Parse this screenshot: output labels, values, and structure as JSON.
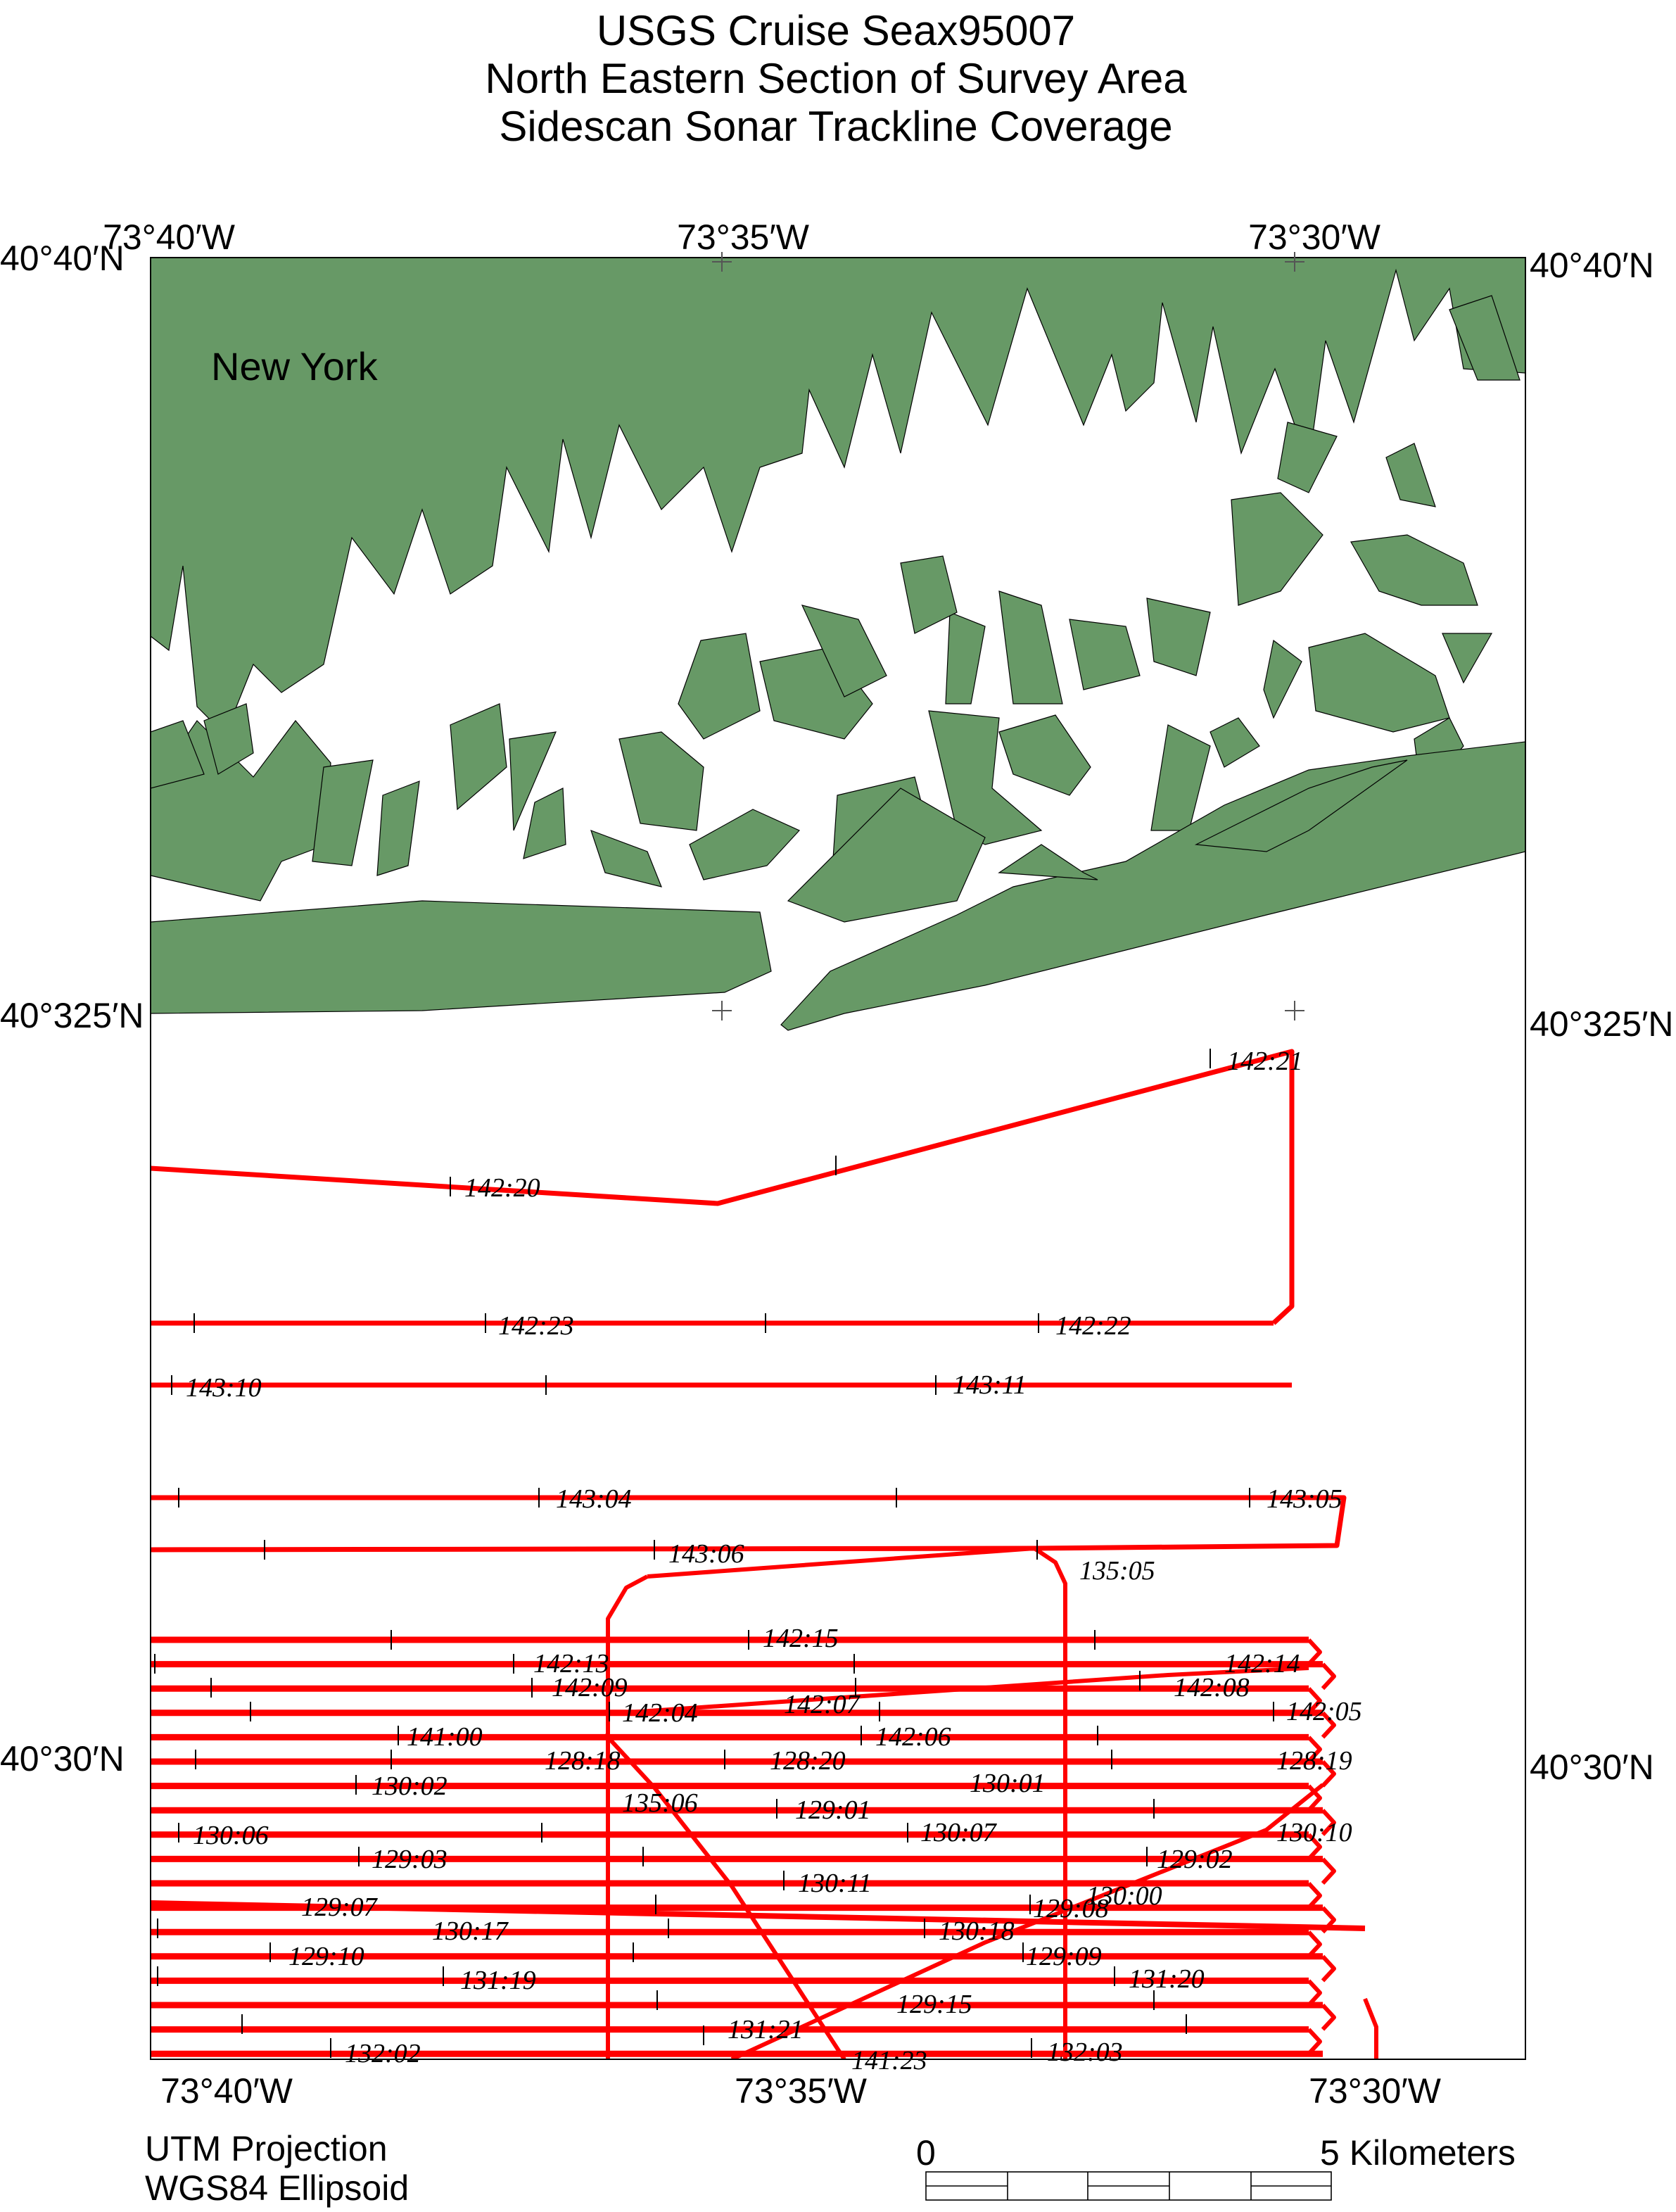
{
  "title": {
    "line1": "USGS Cruise Seax95007",
    "line2": "North Eastern Section of Survey Area",
    "line3": "Sidescan Sonar Trackline Coverage"
  },
  "axes": {
    "top": [
      "73°40′W",
      "73°35′W",
      "73°30′W"
    ],
    "bottom": [
      "73°40′W",
      "73°35′W",
      "73°30′W"
    ],
    "left": [
      "40°40′N",
      "40°325′N",
      "40°30′N"
    ],
    "right": [
      "40°40′N",
      "40°325′N",
      "40°30′N"
    ]
  },
  "place_label": "New York",
  "projection": {
    "line1": "UTM Projection",
    "line2": "WGS84 Ellipsoid"
  },
  "scale_bar": {
    "start": "0",
    "end": "5 Kilometers"
  },
  "colors": {
    "land": "#679966",
    "trackline": "#ff0000",
    "water": "#ffffff"
  },
  "track_labels": [
    "142:21",
    "142:20",
    "142:23",
    "142:22",
    "143:10",
    "143:11",
    "143:04",
    "143:05",
    "143:06",
    "135:05",
    "142:15",
    "142:13",
    "142:14",
    "142:09",
    "142:08",
    "142:07",
    "142:04",
    "142:05",
    "141:00",
    "142:06",
    "128:18",
    "128:20",
    "128:19",
    "130:02",
    "130:01",
    "135:06",
    "129:01",
    "130:06",
    "130:07",
    "130:10",
    "129:03",
    "129:02",
    "130:11",
    "130:00",
    "129:07",
    "129:08",
    "130:17",
    "130:18",
    "129:10",
    "129:09",
    "131:19",
    "131:20",
    "129:15",
    "131:21",
    "132:02",
    "141:23",
    "132:03"
  ]
}
